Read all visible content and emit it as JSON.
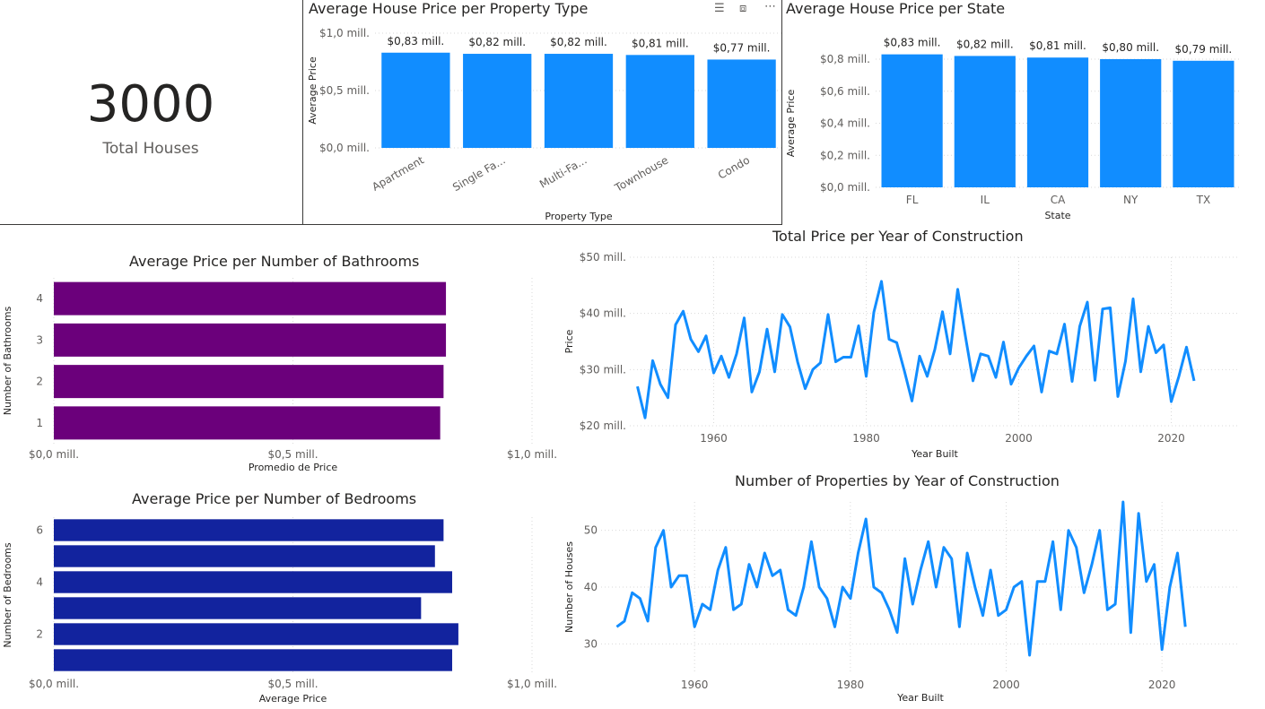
{
  "kpi": {
    "value": "3000",
    "label": "Total Houses"
  },
  "icons": {
    "filter": "filter-icon",
    "focus": "focus-mode-icon",
    "more": "more-options-icon"
  },
  "colors": {
    "blue": "#118dff",
    "purple": "#6b007b",
    "navy": "#12239e",
    "grid": "#d9d9d9"
  },
  "chart_data": [
    {
      "type": "bar",
      "title": "Average House Price per Property Type",
      "xlabel": "Property Type",
      "ylabel": "Average Price",
      "categories": [
        "Apartment",
        "Single Fa...",
        "Multi-Fa...",
        "Townhouse",
        "Condo"
      ],
      "values": [
        0.83,
        0.82,
        0.82,
        0.81,
        0.77
      ],
      "data_labels": [
        "$0,83 mill.",
        "$0,82 mill.",
        "$0,82 mill.",
        "$0,81 mill.",
        "$0,77 mill."
      ],
      "ylim": [
        0,
        1.0
      ],
      "yticks": [
        0,
        0.5,
        1.0
      ],
      "ytick_labels": [
        "$0,0 mill.",
        "$0,5 mill.",
        "$1,0 mill."
      ],
      "color": "#118dff"
    },
    {
      "type": "bar",
      "title": "Average House Price per State",
      "xlabel": "State",
      "ylabel": "Average Price",
      "categories": [
        "FL",
        "IL",
        "CA",
        "NY",
        "TX"
      ],
      "values": [
        0.83,
        0.82,
        0.81,
        0.8,
        0.79
      ],
      "data_labels": [
        "$0,83 mill.",
        "$0,82 mill.",
        "$0,81 mill.",
        "$0,80 mill.",
        "$0,79 mill."
      ],
      "ylim": [
        0,
        0.8
      ],
      "yticks": [
        0,
        0.2,
        0.4,
        0.6,
        0.8
      ],
      "ytick_labels": [
        "$0,0 mill.",
        "$0,2 mill.",
        "$0,4 mill.",
        "$0,6 mill.",
        "$0,8 mill."
      ],
      "color": "#118dff"
    },
    {
      "type": "bar",
      "orientation": "horizontal",
      "title": "Average Price per Number of Bathrooms",
      "xlabel": "Promedio de Price",
      "ylabel": "Number of Bathrooms",
      "categories": [
        "4",
        "3",
        "2",
        "1"
      ],
      "values": [
        0.82,
        0.82,
        0.815,
        0.808
      ],
      "xlim": [
        0,
        1.0
      ],
      "xticks": [
        0,
        0.5,
        1.0
      ],
      "xtick_labels": [
        "$0,0 mill.",
        "$0,5 mill.",
        "$1,0 mill."
      ],
      "color": "#6b007b"
    },
    {
      "type": "bar",
      "orientation": "horizontal",
      "title": "Average Price per Number of Bedrooms",
      "xlabel": "Average Price",
      "ylabel": "Number of Bedrooms",
      "categories": [
        "6",
        "5",
        "4",
        "3",
        "2",
        "1"
      ],
      "category_tick_labels": [
        "6",
        "",
        "4",
        "",
        "2",
        ""
      ],
      "values": [
        0.815,
        0.797,
        0.833,
        0.768,
        0.846,
        0.833
      ],
      "xlim": [
        0,
        1.0
      ],
      "xticks": [
        0,
        0.5,
        1.0
      ],
      "xtick_labels": [
        "$0,0 mill.",
        "$0,5 mill.",
        "$1,0 mill."
      ],
      "color": "#12239e"
    },
    {
      "type": "line",
      "title": "Total Price per Year of Construction",
      "xlabel": "Year Built",
      "ylabel": "Price",
      "x": [
        1950,
        1951,
        1952,
        1953,
        1954,
        1955,
        1956,
        1957,
        1958,
        1959,
        1960,
        1961,
        1962,
        1963,
        1964,
        1965,
        1966,
        1967,
        1968,
        1969,
        1970,
        1971,
        1972,
        1973,
        1974,
        1975,
        1976,
        1977,
        1978,
        1979,
        1980,
        1981,
        1982,
        1983,
        1984,
        1985,
        1986,
        1987,
        1988,
        1989,
        1990,
        1991,
        1992,
        1993,
        1994,
        1995,
        1996,
        1997,
        1998,
        1999,
        2000,
        2001,
        2002,
        2003,
        2004,
        2005,
        2006,
        2007,
        2008,
        2009,
        2010,
        2011,
        2012,
        2013,
        2014,
        2015,
        2016,
        2017,
        2018,
        2019,
        2020,
        2021,
        2022,
        2023
      ],
      "y": [
        27,
        21.4,
        31.6,
        27.4,
        25,
        38,
        40.4,
        35.4,
        33.2,
        36,
        29.4,
        32.4,
        28.6,
        32.8,
        39.2,
        26,
        29.6,
        37.2,
        29.6,
        39.8,
        37.6,
        31.4,
        26.6,
        30,
        31.2,
        39.8,
        31.4,
        32.2,
        32.2,
        37.8,
        28.8,
        40.2,
        45.7,
        35.4,
        34.8,
        29.8,
        24.4,
        32.4,
        28.8,
        33.6,
        40.3,
        32.8,
        44.3,
        36,
        28,
        32.8,
        32.4,
        28.6,
        34.9,
        27.4,
        30.3,
        32.4,
        34.2,
        26,
        33.3,
        32.8,
        38.1,
        27.9,
        37.7,
        42,
        28.1,
        40.8,
        41,
        25.2,
        31.5,
        42.6,
        29.6,
        37.7,
        33,
        34.4,
        24.3,
        28.8,
        34,
        28
      ],
      "xlim": [
        1949,
        2029
      ],
      "ylim": [
        20,
        50
      ],
      "xticks": [
        1960,
        1980,
        2000,
        2020
      ],
      "yticks": [
        20,
        30,
        40,
        50
      ],
      "ytick_labels": [
        "$20 mill.",
        "$30 mill.",
        "$40 mill.",
        "$50 mill."
      ],
      "color": "#118dff"
    },
    {
      "type": "line",
      "title": "Number of Properties by Year of Construction",
      "xlabel": "Year Built",
      "ylabel": "Number of Houses",
      "x": [
        1950,
        1951,
        1952,
        1953,
        1954,
        1955,
        1956,
        1957,
        1958,
        1959,
        1960,
        1961,
        1962,
        1963,
        1964,
        1965,
        1966,
        1967,
        1968,
        1969,
        1970,
        1971,
        1972,
        1973,
        1974,
        1975,
        1976,
        1977,
        1978,
        1979,
        1980,
        1981,
        1982,
        1983,
        1984,
        1985,
        1986,
        1987,
        1988,
        1989,
        1990,
        1991,
        1992,
        1993,
        1994,
        1995,
        1996,
        1997,
        1998,
        1999,
        2000,
        2001,
        2002,
        2003,
        2004,
        2005,
        2006,
        2007,
        2008,
        2009,
        2010,
        2011,
        2012,
        2013,
        2014,
        2015,
        2016,
        2017,
        2018,
        2019,
        2020,
        2021,
        2022,
        2023
      ],
      "y": [
        33,
        34,
        39,
        38,
        34,
        47,
        50,
        40,
        42,
        42,
        33,
        37,
        36,
        43,
        47,
        36,
        37,
        44,
        40,
        46,
        42,
        43,
        36,
        35,
        40,
        48,
        40,
        38,
        33,
        40,
        38,
        46,
        52,
        40,
        39,
        36,
        32,
        45,
        37,
        43,
        48,
        40,
        47,
        45,
        33,
        46,
        40,
        35,
        43,
        35,
        36,
        40,
        41,
        28,
        41,
        41,
        48,
        36,
        50,
        47,
        39,
        44,
        50,
        36,
        37,
        55,
        32,
        53,
        41,
        44,
        29,
        40,
        46,
        33
      ],
      "xlim": [
        1948,
        2030
      ],
      "ylim": [
        25,
        55
      ],
      "xticks": [
        1960,
        1980,
        2000,
        2020
      ],
      "yticks": [
        30,
        40,
        50
      ],
      "ytick_labels": [
        "30",
        "40",
        "50"
      ],
      "color": "#118dff"
    }
  ]
}
